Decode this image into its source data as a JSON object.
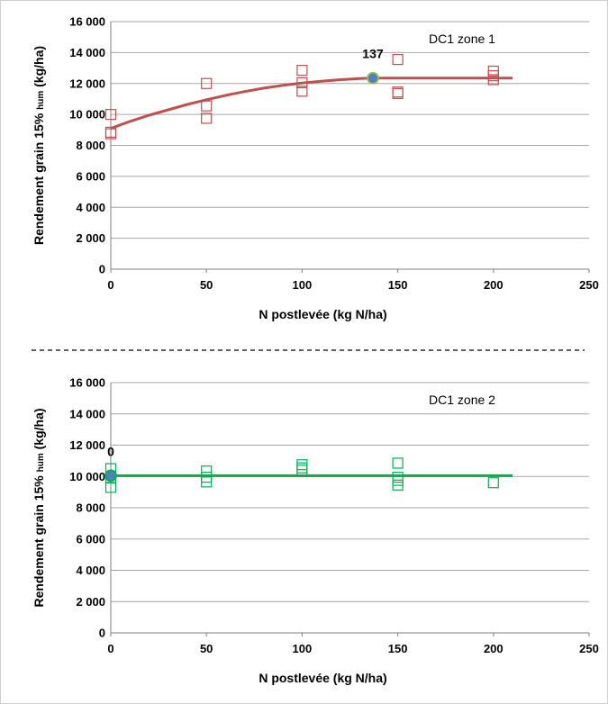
{
  "chart_data": [
    {
      "type": "scatter",
      "panel_label": "DC1 zone 1",
      "xlabel": "N postlevée (kg N/ha)",
      "ylabel_main": "Rendement grain 15%",
      "ylabel_sub": "hum",
      "ylabel_unit": "(kg/ha)",
      "xlim": [
        0,
        250
      ],
      "ylim": [
        0,
        16000
      ],
      "x_ticks": [
        "0",
        "50",
        "100",
        "150",
        "200",
        "250"
      ],
      "y_ticks": [
        "0",
        "2 000",
        "4 000",
        "6 000",
        "8 000",
        "10 000",
        "12 000",
        "14 000",
        "16 000"
      ],
      "grid": "horizontal",
      "color": "#c0504d",
      "points": [
        {
          "x": 0,
          "y": 10000
        },
        {
          "x": 0,
          "y": 8850
        },
        {
          "x": 0,
          "y": 8750
        },
        {
          "x": 50,
          "y": 12000
        },
        {
          "x": 50,
          "y": 10550
        },
        {
          "x": 50,
          "y": 9750
        },
        {
          "x": 100,
          "y": 12850
        },
        {
          "x": 100,
          "y": 12050
        },
        {
          "x": 100,
          "y": 11500
        },
        {
          "x": 150,
          "y": 13550
        },
        {
          "x": 150,
          "y": 11450
        },
        {
          "x": 150,
          "y": 11350
        },
        {
          "x": 200,
          "y": 12800
        },
        {
          "x": 200,
          "y": 12500
        },
        {
          "x": 200,
          "y": 12250
        }
      ],
      "fit_curve": [
        {
          "x": 0,
          "y": 9100
        },
        {
          "x": 10,
          "y": 9550
        },
        {
          "x": 20,
          "y": 9950
        },
        {
          "x": 30,
          "y": 10300
        },
        {
          "x": 40,
          "y": 10650
        },
        {
          "x": 50,
          "y": 10950
        },
        {
          "x": 60,
          "y": 11230
        },
        {
          "x": 70,
          "y": 11480
        },
        {
          "x": 80,
          "y": 11700
        },
        {
          "x": 90,
          "y": 11880
        },
        {
          "x": 100,
          "y": 12030
        },
        {
          "x": 110,
          "y": 12150
        },
        {
          "x": 120,
          "y": 12250
        },
        {
          "x": 130,
          "y": 12320
        },
        {
          "x": 137,
          "y": 12350
        },
        {
          "x": 210,
          "y": 12350
        }
      ],
      "optimum": {
        "x": 137,
        "y": 12350,
        "label": "137"
      }
    },
    {
      "type": "scatter",
      "panel_label": "DC1 zone 2",
      "xlabel": "N postlevée (kg N/ha)",
      "ylabel_main": "Rendement grain 15%",
      "ylabel_sub": "hum",
      "ylabel_unit": "(kg/ha)",
      "xlim": [
        0,
        250
      ],
      "ylim": [
        0,
        16000
      ],
      "x_ticks": [
        "0",
        "50",
        "100",
        "150",
        "200",
        "250"
      ],
      "y_ticks": [
        "0",
        "2 000",
        "4 000",
        "6 000",
        "8 000",
        "10 000",
        "12 000",
        "14 000",
        "16 000"
      ],
      "grid": "horizontal",
      "color": "#00b050",
      "points": [
        {
          "x": 0,
          "y": 10500
        },
        {
          "x": 0,
          "y": 9900
        },
        {
          "x": 0,
          "y": 9300
        },
        {
          "x": 50,
          "y": 10350
        },
        {
          "x": 50,
          "y": 9950
        },
        {
          "x": 50,
          "y": 9650
        },
        {
          "x": 100,
          "y": 10750
        },
        {
          "x": 100,
          "y": 10550
        },
        {
          "x": 100,
          "y": 10400
        },
        {
          "x": 150,
          "y": 10850
        },
        {
          "x": 150,
          "y": 9950
        },
        {
          "x": 150,
          "y": 9750
        },
        {
          "x": 150,
          "y": 9450
        },
        {
          "x": 200,
          "y": 9600
        }
      ],
      "fit_curve": [
        {
          "x": 0,
          "y": 10050
        },
        {
          "x": 210,
          "y": 10050
        }
      ],
      "optimum": {
        "x": 0,
        "y": 10050,
        "label": "0"
      }
    }
  ],
  "colors": {
    "grid": "#a6a6a6",
    "optimum_fill": "#4f81bd",
    "optimum_stroke_zone1": "#9bbb59",
    "optimum_stroke_zone2": "#00b050",
    "separator": "#000000"
  }
}
